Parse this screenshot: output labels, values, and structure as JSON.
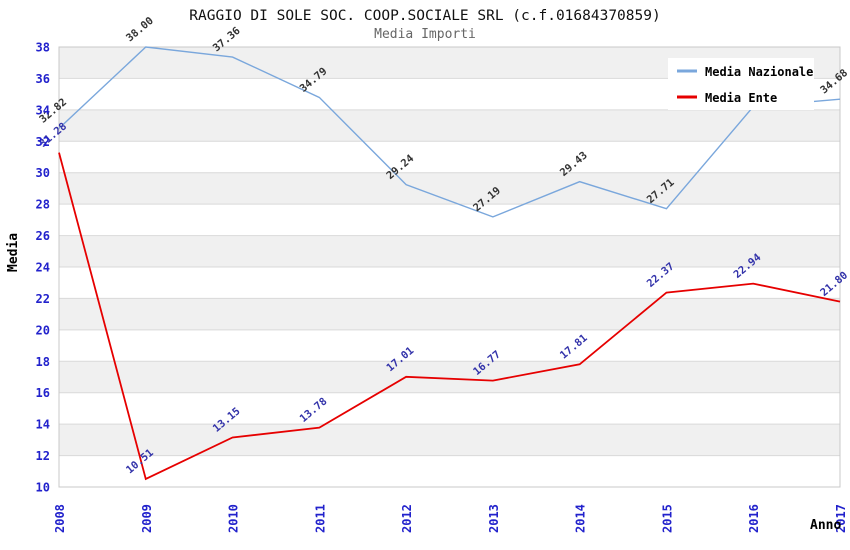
{
  "header": {
    "title": "RAGGIO DI SOLE SOC. COOP.SOCIALE SRL (c.f.01684370859)",
    "subtitle": "Media Importi"
  },
  "axes": {
    "y_title": "Media",
    "x_title": "Anno"
  },
  "colors": {
    "background": "#ffffff",
    "band_gray": "#f0f0f0",
    "gridline": "#d9d9d9",
    "plot_border": "#c8c8c8",
    "axis_ticks": "#2222cc",
    "title": "#111111",
    "subtitle": "#666666",
    "axis_title": "#000000",
    "legend_text": "#000000",
    "legend_box": "#ffffff"
  },
  "chart_data": {
    "type": "line",
    "title": "RAGGIO DI SOLE SOC. COOP.SOCIALE SRL (c.f.01684370859)",
    "subtitle": "Media Importi",
    "xlabel": "Anno",
    "ylabel": "Media",
    "x": [
      "2008",
      "2009",
      "2010",
      "2011",
      "2012",
      "2013",
      "2014",
      "2015",
      "2016",
      "2017"
    ],
    "ylim": [
      10,
      38
    ],
    "y_ticks": [
      10,
      12,
      14,
      16,
      18,
      20,
      22,
      24,
      26,
      28,
      30,
      32,
      34,
      36,
      38
    ],
    "grid": "horizontal gridlines every 2 units with alternating white/gray bands",
    "legend_position": "top-right",
    "series": [
      {
        "name": "Media Nazionale",
        "color": "#7aa7dc",
        "stroke_width": 1.4,
        "label_color": "#333333",
        "values": [
          32.82,
          38.0,
          37.36,
          34.79,
          29.24,
          27.19,
          29.43,
          27.71,
          34.2,
          34.68
        ],
        "labels": [
          "32.82",
          "38.00",
          "37.36",
          "34.79",
          "29.24",
          "27.19",
          "29.43",
          "27.71",
          "",
          "34.68"
        ]
      },
      {
        "name": "Media Ente",
        "color": "#e60000",
        "stroke_width": 1.8,
        "label_color": "#3333aa",
        "values": [
          31.28,
          10.51,
          13.15,
          13.78,
          17.01,
          16.77,
          17.81,
          22.37,
          22.94,
          21.8
        ],
        "labels": [
          "31.28",
          "10.51",
          "13.15",
          "13.78",
          "17.01",
          "16.77",
          "17.81",
          "22.37",
          "22.94",
          "21.80"
        ]
      }
    ]
  }
}
